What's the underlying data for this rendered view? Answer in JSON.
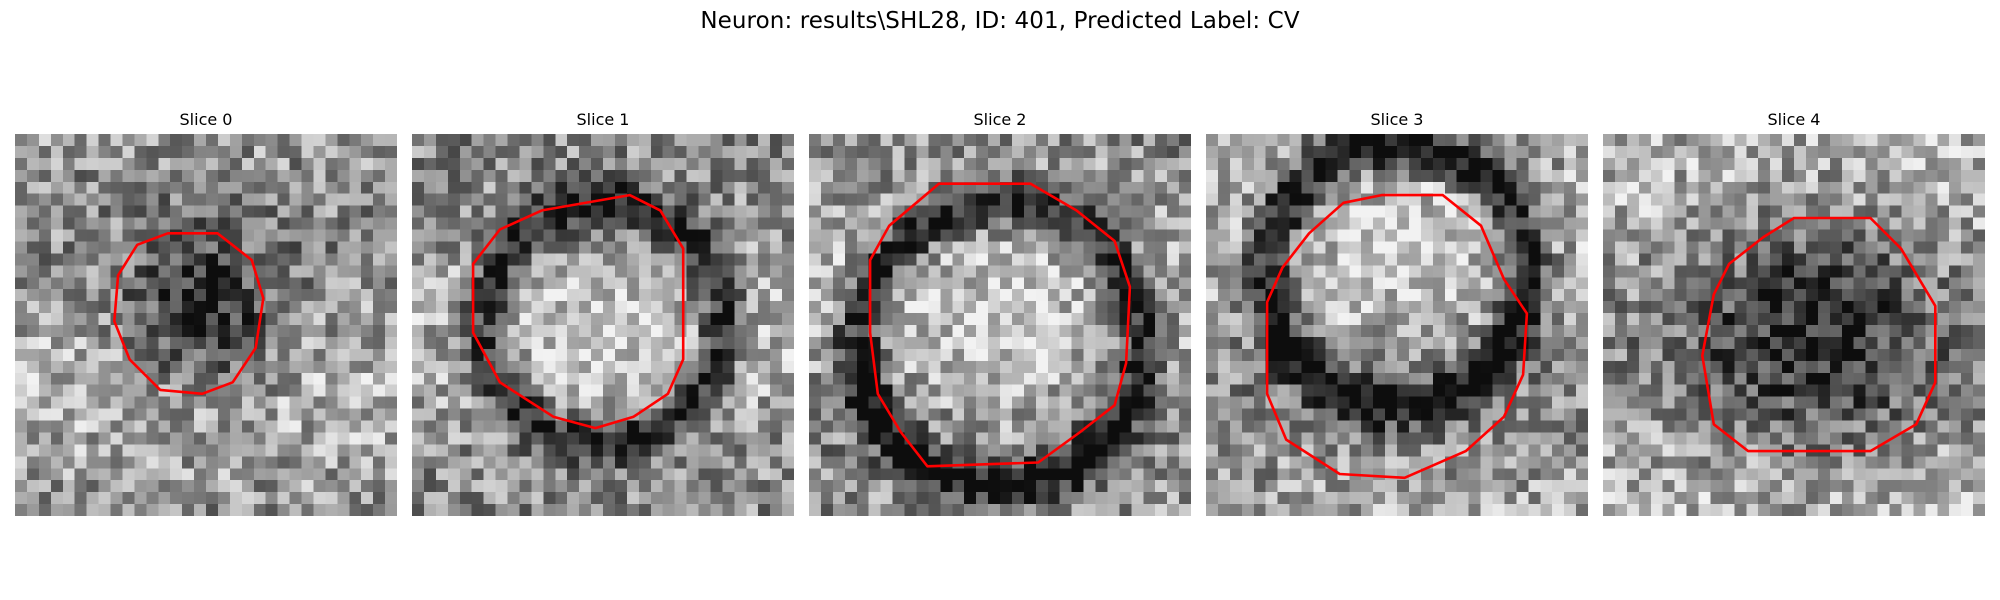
{
  "figure": {
    "title": "Neuron: results\\SHL28, ID: 401, Predicted Label: CV"
  },
  "colors": {
    "contour": "#ff0000",
    "background": "#ffffff"
  },
  "grid_size": 32,
  "slices": [
    {
      "title": "Slice 0",
      "seed": 101,
      "dark_center": [
        0.5,
        0.48
      ],
      "dark_radius": 0.2,
      "dark_strength": 0.45,
      "bright_inner": 0.0,
      "contour": [
        [
          0.4,
          0.26
        ],
        [
          0.53,
          0.26
        ],
        [
          0.62,
          0.33
        ],
        [
          0.65,
          0.43
        ],
        [
          0.63,
          0.56
        ],
        [
          0.57,
          0.65
        ],
        [
          0.49,
          0.68
        ],
        [
          0.38,
          0.67
        ],
        [
          0.3,
          0.59
        ],
        [
          0.26,
          0.49
        ],
        [
          0.27,
          0.37
        ],
        [
          0.32,
          0.29
        ]
      ]
    },
    {
      "title": "Slice 1",
      "seed": 202,
      "dark_center": [
        0.5,
        0.5
      ],
      "dark_radius": 0.31,
      "dark_strength": 0.5,
      "bright_inner": 0.25,
      "contour": [
        [
          0.34,
          0.2
        ],
        [
          0.57,
          0.16
        ],
        [
          0.65,
          0.2
        ],
        [
          0.71,
          0.3
        ],
        [
          0.71,
          0.59
        ],
        [
          0.67,
          0.68
        ],
        [
          0.58,
          0.74
        ],
        [
          0.48,
          0.77
        ],
        [
          0.37,
          0.74
        ],
        [
          0.23,
          0.65
        ],
        [
          0.16,
          0.52
        ],
        [
          0.16,
          0.34
        ],
        [
          0.23,
          0.25
        ]
      ]
    },
    {
      "title": "Slice 2",
      "seed": 303,
      "dark_center": [
        0.5,
        0.55
      ],
      "dark_radius": 0.37,
      "dark_strength": 0.55,
      "bright_inner": 0.28,
      "contour": [
        [
          0.34,
          0.13
        ],
        [
          0.58,
          0.13
        ],
        [
          0.7,
          0.2
        ],
        [
          0.8,
          0.28
        ],
        [
          0.84,
          0.4
        ],
        [
          0.83,
          0.6
        ],
        [
          0.8,
          0.71
        ],
        [
          0.71,
          0.78
        ],
        [
          0.6,
          0.86
        ],
        [
          0.31,
          0.87
        ],
        [
          0.24,
          0.78
        ],
        [
          0.18,
          0.68
        ],
        [
          0.16,
          0.52
        ],
        [
          0.16,
          0.33
        ],
        [
          0.21,
          0.24
        ]
      ]
    },
    {
      "title": "Slice 3",
      "seed": 404,
      "dark_center": [
        0.5,
        0.37
      ],
      "dark_radius": 0.34,
      "dark_strength": 0.6,
      "bright_inner": 0.3,
      "contour": [
        [
          0.36,
          0.18
        ],
        [
          0.46,
          0.16
        ],
        [
          0.62,
          0.16
        ],
        [
          0.72,
          0.24
        ],
        [
          0.78,
          0.38
        ],
        [
          0.84,
          0.47
        ],
        [
          0.83,
          0.63
        ],
        [
          0.78,
          0.74
        ],
        [
          0.68,
          0.83
        ],
        [
          0.52,
          0.9
        ],
        [
          0.35,
          0.89
        ],
        [
          0.21,
          0.8
        ],
        [
          0.16,
          0.68
        ],
        [
          0.16,
          0.44
        ],
        [
          0.2,
          0.35
        ],
        [
          0.27,
          0.26
        ]
      ]
    },
    {
      "title": "Slice 4",
      "seed": 505,
      "dark_center": [
        0.55,
        0.52
      ],
      "dark_radius": 0.3,
      "dark_strength": 0.4,
      "bright_inner": 0.0,
      "contour": [
        [
          0.5,
          0.22
        ],
        [
          0.7,
          0.22
        ],
        [
          0.78,
          0.3
        ],
        [
          0.87,
          0.45
        ],
        [
          0.87,
          0.65
        ],
        [
          0.82,
          0.76
        ],
        [
          0.7,
          0.83
        ],
        [
          0.38,
          0.83
        ],
        [
          0.29,
          0.76
        ],
        [
          0.26,
          0.58
        ],
        [
          0.29,
          0.42
        ],
        [
          0.33,
          0.34
        ],
        [
          0.42,
          0.27
        ]
      ]
    }
  ]
}
